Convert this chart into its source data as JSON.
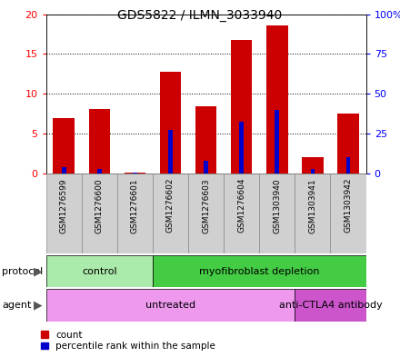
{
  "title": "GDS5822 / ILMN_3033940",
  "samples": [
    "GSM1276599",
    "GSM1276600",
    "GSM1276601",
    "GSM1276602",
    "GSM1276603",
    "GSM1276604",
    "GSM1303940",
    "GSM1303941",
    "GSM1303942"
  ],
  "counts": [
    6.9,
    8.1,
    0.1,
    12.8,
    8.4,
    16.8,
    18.6,
    2.0,
    7.5
  ],
  "percentiles": [
    4.0,
    2.5,
    0.2,
    27.5,
    7.5,
    32.5,
    40.0,
    2.5,
    10.0
  ],
  "ylim_left": [
    0,
    20
  ],
  "ylim_right": [
    0,
    100
  ],
  "yticks_left": [
    0,
    5,
    10,
    15,
    20
  ],
  "yticks_right": [
    0,
    25,
    50,
    75,
    100
  ],
  "ytick_labels_left": [
    "0",
    "5",
    "10",
    "15",
    "20"
  ],
  "ytick_labels_right": [
    "0",
    "25",
    "50",
    "75",
    "100%"
  ],
  "bar_color": "#cc0000",
  "percentile_color": "#0000cc",
  "grid_color": "#000000",
  "protocol_groups": [
    {
      "label": "control",
      "start": 0,
      "end": 3,
      "color": "#aaeaaa"
    },
    {
      "label": "myofibroblast depletion",
      "start": 3,
      "end": 9,
      "color": "#44cc44"
    }
  ],
  "agent_groups": [
    {
      "label": "untreated",
      "start": 0,
      "end": 7,
      "color": "#ee99ee"
    },
    {
      "label": "anti-CTLA4 antibody",
      "start": 7,
      "end": 9,
      "color": "#cc55cc"
    }
  ],
  "legend_count_label": "count",
  "legend_percentile_label": "percentile rank within the sample",
  "sample_box_color": "#d0d0d0",
  "sample_box_edge": "#888888"
}
